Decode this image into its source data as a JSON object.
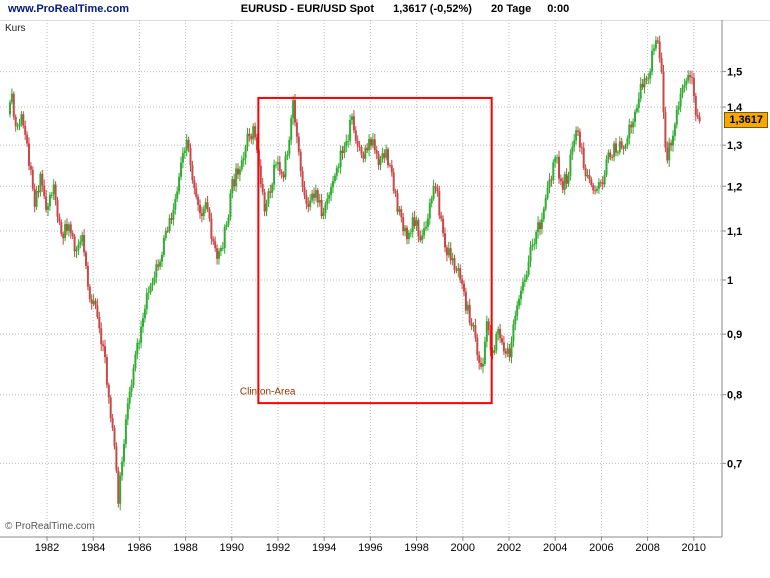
{
  "header": {
    "site": "www.ProRealTime.com",
    "instrument": "EURUSD - EUR/USD Spot",
    "price_change": "1,3617 (-0,52%)",
    "timeframe": "20 Tage",
    "session_time": "0:00"
  },
  "chart": {
    "pane_label": "Kurs",
    "copyright": "© ProRealTime.com",
    "price_tag": "1,3617"
  },
  "colors": {
    "up": "#2fae2f",
    "down": "#c94848",
    "annotation": "#ff0000",
    "annotation_text": "#993300",
    "grid": "#bdbdbd",
    "axis": "#8a8a8a",
    "tag_bg": "#f5a800",
    "site_link": "#001a80"
  },
  "chart_data": {
    "type": "candlestick",
    "title": "EURUSD - EUR/USD Spot",
    "timeframe": "20 Tage",
    "last_price": 1.3617,
    "change_pct": -0.52,
    "seed": 11,
    "bar_interval_days": 20,
    "y_axis": {
      "side": "right",
      "scale": "log",
      "ticks": [
        0.7,
        0.8,
        0.9,
        1,
        1.1,
        1.2,
        1.3,
        1.4,
        1.5
      ],
      "tick_labels": [
        "0,7",
        "0,8",
        "0,9",
        "1",
        "1,1",
        "1,2",
        "1,3",
        "1,4",
        "1,5"
      ]
    },
    "x_axis": {
      "ticks": [
        1982,
        1984,
        1986,
        1988,
        1990,
        1992,
        1994,
        1996,
        1998,
        2000,
        2002,
        2004,
        2006,
        2008,
        2010
      ]
    },
    "anchors": [
      [
        1980.4,
        1.38
      ],
      [
        1980.55,
        1.44
      ],
      [
        1980.75,
        1.34
      ],
      [
        1981.0,
        1.39
      ],
      [
        1981.3,
        1.26
      ],
      [
        1981.55,
        1.15
      ],
      [
        1981.8,
        1.23
      ],
      [
        1982.05,
        1.14
      ],
      [
        1982.35,
        1.2
      ],
      [
        1982.7,
        1.08
      ],
      [
        1983.0,
        1.12
      ],
      [
        1983.3,
        1.05
      ],
      [
        1983.6,
        1.08
      ],
      [
        1983.9,
        0.98
      ],
      [
        1984.2,
        0.94
      ],
      [
        1984.5,
        0.88
      ],
      [
        1984.75,
        0.8
      ],
      [
        1985.0,
        0.73
      ],
      [
        1985.15,
        0.645
      ],
      [
        1985.3,
        0.7
      ],
      [
        1985.5,
        0.76
      ],
      [
        1985.75,
        0.82
      ],
      [
        1986.0,
        0.88
      ],
      [
        1986.3,
        0.94
      ],
      [
        1986.6,
        1.0
      ],
      [
        1986.9,
        1.04
      ],
      [
        1987.2,
        1.08
      ],
      [
        1987.6,
        1.15
      ],
      [
        1987.95,
        1.27
      ],
      [
        1988.15,
        1.3
      ],
      [
        1988.45,
        1.19
      ],
      [
        1988.7,
        1.13
      ],
      [
        1988.95,
        1.17
      ],
      [
        1989.2,
        1.09
      ],
      [
        1989.5,
        1.04
      ],
      [
        1989.8,
        1.1
      ],
      [
        1990.1,
        1.2
      ],
      [
        1990.5,
        1.27
      ],
      [
        1990.85,
        1.33
      ],
      [
        1991.05,
        1.34
      ],
      [
        1991.3,
        1.22
      ],
      [
        1991.55,
        1.14
      ],
      [
        1991.8,
        1.21
      ],
      [
        1992.05,
        1.27
      ],
      [
        1992.3,
        1.21
      ],
      [
        1992.6,
        1.34
      ],
      [
        1992.72,
        1.44
      ],
      [
        1992.9,
        1.32
      ],
      [
        1993.1,
        1.21
      ],
      [
        1993.4,
        1.16
      ],
      [
        1993.7,
        1.19
      ],
      [
        1994.0,
        1.13
      ],
      [
        1994.3,
        1.19
      ],
      [
        1994.7,
        1.26
      ],
      [
        1995.0,
        1.29
      ],
      [
        1995.28,
        1.37
      ],
      [
        1995.55,
        1.3
      ],
      [
        1995.85,
        1.28
      ],
      [
        1996.15,
        1.31
      ],
      [
        1996.5,
        1.26
      ],
      [
        1996.8,
        1.28
      ],
      [
        1997.1,
        1.19
      ],
      [
        1997.4,
        1.13
      ],
      [
        1997.7,
        1.09
      ],
      [
        1997.95,
        1.13
      ],
      [
        1998.25,
        1.08
      ],
      [
        1998.55,
        1.13
      ],
      [
        1998.8,
        1.2
      ],
      [
        1999.0,
        1.17
      ],
      [
        1999.3,
        1.07
      ],
      [
        1999.6,
        1.04
      ],
      [
        1999.9,
        1.01
      ],
      [
        2000.2,
        0.95
      ],
      [
        2000.5,
        0.92
      ],
      [
        2000.75,
        0.86
      ],
      [
        2000.95,
        0.835
      ],
      [
        2001.1,
        0.93
      ],
      [
        2001.35,
        0.86
      ],
      [
        2001.6,
        0.9
      ],
      [
        2001.85,
        0.88
      ],
      [
        2002.1,
        0.87
      ],
      [
        2002.4,
        0.93
      ],
      [
        2002.7,
        0.99
      ],
      [
        2003.0,
        1.06
      ],
      [
        2003.3,
        1.1
      ],
      [
        2003.6,
        1.15
      ],
      [
        2003.9,
        1.22
      ],
      [
        2004.1,
        1.27
      ],
      [
        2004.4,
        1.2
      ],
      [
        2004.7,
        1.24
      ],
      [
        2004.95,
        1.35
      ],
      [
        2005.2,
        1.29
      ],
      [
        2005.5,
        1.21
      ],
      [
        2005.8,
        1.18
      ],
      [
        2006.1,
        1.21
      ],
      [
        2006.45,
        1.28
      ],
      [
        2006.8,
        1.29
      ],
      [
        2007.1,
        1.31
      ],
      [
        2007.45,
        1.36
      ],
      [
        2007.8,
        1.45
      ],
      [
        2008.05,
        1.48
      ],
      [
        2008.3,
        1.55
      ],
      [
        2008.52,
        1.59
      ],
      [
        2008.72,
        1.46
      ],
      [
        2008.9,
        1.26
      ],
      [
        2009.05,
        1.3
      ],
      [
        2009.2,
        1.34
      ],
      [
        2009.4,
        1.4
      ],
      [
        2009.65,
        1.46
      ],
      [
        2009.9,
        1.5
      ],
      [
        2010.05,
        1.45
      ],
      [
        2010.25,
        1.362
      ]
    ],
    "annotations": {
      "rect": {
        "x1": 1991.15,
        "x2": 2001.25,
        "y1": 0.787,
        "y2": 1.425
      },
      "label": {
        "text": "Clinton-Area",
        "x": 1990.35,
        "y": 0.8
      }
    }
  }
}
